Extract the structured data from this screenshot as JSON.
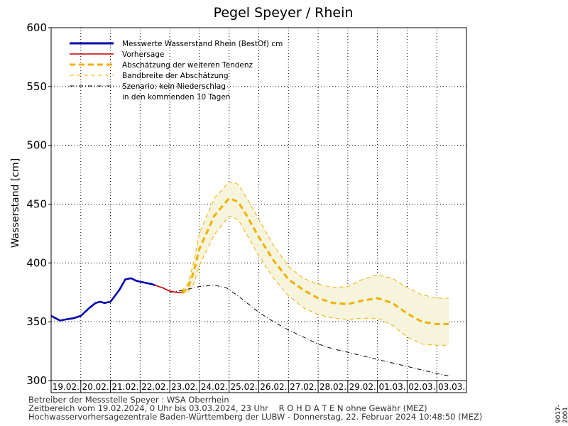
{
  "chart_data": {
    "type": "line",
    "title": "Pegel Speyer / Rhein",
    "ylabel": "Wasserstand [cm]",
    "xlabel": "",
    "ylim": [
      300,
      600
    ],
    "xlim": [
      0,
      14
    ],
    "y_ticks": [
      300,
      350,
      400,
      450,
      500,
      550,
      600
    ],
    "x_tick_labels": [
      "19.02.",
      "20.02.",
      "21.02.",
      "22.02.",
      "23.02.",
      "24.02.",
      "25.02.",
      "26.02.",
      "27.02.",
      "28.02.",
      "29.02.",
      "01.03.",
      "02.03.",
      "03.03."
    ],
    "grid": true,
    "legend_position": "top-left",
    "legend": [
      {
        "label": "Messwerte Wasserstand Rhein (BestOf)  cm",
        "color": "#0000aa",
        "style": "solid-thick"
      },
      {
        "label": "Vorhersage",
        "color": "#c00000",
        "style": "solid"
      },
      {
        "label": "Abschätzung der weiteren Tendenz",
        "color": "#f0b000",
        "style": "dashed-thick"
      },
      {
        "label": "Bandbreite der Abschätzung",
        "color": "#f0b000",
        "style": "dashed-thin"
      },
      {
        "label": "Szenario: kein Niederschlag",
        "color": "#000000",
        "style": "dash-dot"
      },
      {
        "label": "in den kommenden 10 Tagen",
        "color": "",
        "style": "none"
      }
    ],
    "series": [
      {
        "name": "Messwerte Wasserstand Rhein (BestOf)  cm",
        "color": "#0000aa",
        "x": [
          0,
          0.15,
          0.3,
          0.5,
          0.75,
          1.0,
          1.3,
          1.5,
          1.65,
          1.8,
          2.0,
          2.3,
          2.5,
          2.7,
          2.85,
          3.0,
          3.2,
          3.4,
          3.5
        ],
        "y": [
          355,
          353,
          351,
          352,
          353,
          355,
          362,
          366,
          367,
          366,
          367,
          377,
          386,
          387,
          385,
          384,
          383,
          382,
          381
        ]
      },
      {
        "name": "Vorhersage",
        "color": "#c00000",
        "x": [
          3.5,
          3.75,
          4.0,
          4.25,
          4.45
        ],
        "y": [
          381,
          379,
          376,
          375,
          375
        ]
      },
      {
        "name": "Abschätzung der weiteren Tendenz",
        "color": "#f0b000",
        "x": [
          4.4,
          4.6,
          4.8,
          5.0,
          5.5,
          6.0,
          6.3,
          6.6,
          7.0,
          7.5,
          8.0,
          8.5,
          9.0,
          9.5,
          10.0,
          10.5,
          11.0,
          11.5,
          12.0,
          12.5,
          13.0,
          13.4
        ],
        "y": [
          375,
          378,
          392,
          412,
          440,
          455,
          452,
          440,
          422,
          402,
          386,
          377,
          370,
          366,
          365,
          368,
          370,
          366,
          357,
          350,
          348,
          348
        ]
      },
      {
        "name": "Bandbreite der Abschätzung (oben)",
        "color": "#f0b000",
        "x": [
          4.4,
          4.6,
          4.8,
          5.0,
          5.5,
          6.0,
          6.3,
          6.6,
          7.0,
          7.5,
          8.0,
          8.5,
          9.0,
          9.5,
          10.0,
          10.5,
          11.0,
          11.5,
          12.0,
          12.5,
          13.0,
          13.4
        ],
        "y": [
          376,
          382,
          400,
          425,
          455,
          469,
          467,
          455,
          437,
          415,
          397,
          387,
          382,
          379,
          380,
          386,
          390,
          387,
          379,
          373,
          370,
          370
        ]
      },
      {
        "name": "Bandbreite der Abschätzung (unten)",
        "color": "#f0b000",
        "x": [
          4.4,
          4.6,
          4.8,
          5.0,
          5.5,
          6.0,
          6.3,
          6.6,
          7.0,
          7.5,
          8.0,
          8.5,
          9.0,
          9.5,
          10.0,
          10.5,
          11.0,
          11.5,
          12.0,
          12.5,
          13.0,
          13.4
        ],
        "y": [
          374,
          375,
          382,
          398,
          424,
          440,
          437,
          424,
          406,
          387,
          372,
          362,
          356,
          353,
          352,
          353,
          353,
          347,
          337,
          331,
          330,
          330
        ]
      },
      {
        "name": "Szenario: kein Niederschlag",
        "color": "#000000",
        "x": [
          4.0,
          4.5,
          5.0,
          5.5,
          5.9,
          6.3,
          7.0,
          7.5,
          8.0,
          8.5,
          9.0,
          9.5,
          10.0,
          10.5,
          11.0,
          11.5,
          12.0,
          12.5,
          13.0,
          13.4
        ],
        "y": [
          375,
          377,
          380,
          381,
          379,
          372,
          358,
          350,
          343,
          337,
          331,
          327,
          324,
          321,
          318,
          315,
          312,
          309,
          306,
          304
        ]
      }
    ]
  },
  "footer": {
    "line1": "Betreiber der Messstelle Speyer : WSA Oberrhein",
    "line2": "Zeitbereich vom 19.02.2024, 0 Uhr bis 03.03.2024, 23 Uhr    R O H D A T E N ohne Gewähr (MEZ)",
    "line3": "Hochwasservorhersagezentrale Baden-Württemberg der LUBW - Donnerstag, 22. Februar 2024 10:48:50 (MEZ)"
  },
  "side_code": "9017-2001"
}
